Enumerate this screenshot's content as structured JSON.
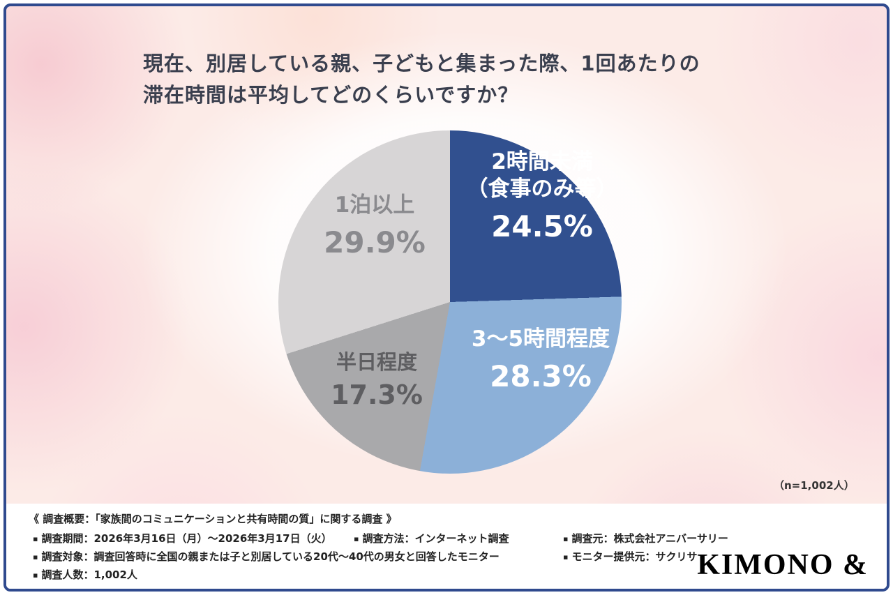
{
  "page": {
    "title_line1": "現在、別居している親、子どもと集まった際、1回あたりの",
    "title_line2": "滞在時間は平均してどのくらいですか？",
    "sample_note": "（n=1,002人）"
  },
  "chart_data": {
    "type": "pie",
    "title": "現在、別居している親、子どもと集まった際、1回あたりの滞在時間は平均してどのくらいですか？",
    "n": "1,002",
    "start_angle_deg": 0,
    "direction": "clockwise",
    "legend_position": "on-slices",
    "slices": [
      {
        "label": "2時間未満（食事のみ等）",
        "label_lines": [
          "2時間未満",
          "（食事のみ等）"
        ],
        "value": 24.5,
        "value_label": "24.5%",
        "color": "#31508f",
        "text_color": "#ffffff"
      },
      {
        "label": "3〜5時間程度",
        "label_lines": [
          "3〜5時間程度"
        ],
        "value": 28.3,
        "value_label": "28.3%",
        "color": "#8cb0d8",
        "text_color": "#ffffff"
      },
      {
        "label": "半日程度",
        "label_lines": [
          "半日程度"
        ],
        "value": 17.3,
        "value_label": "17.3%",
        "color": "#a9a9ab",
        "text_color": "#5e5e61"
      },
      {
        "label": "1泊以上",
        "label_lines": [
          "1泊以上"
        ],
        "value": 29.9,
        "value_label": "29.9%",
        "color": "#d7d5d6",
        "text_color": "#8a8a8e"
      }
    ]
  },
  "footer": {
    "bullet": "▪",
    "heading": "《 調査概要：「家族間のコミュニケーションと共有時間の質」に関する調査 》",
    "items": [
      {
        "text": "調査期間：2026年3月16日（月）〜2026年3月17日（火）"
      },
      {
        "text": "調査方法：インターネット調査"
      },
      {
        "text": "調査元：株式会社アニバーサリー"
      },
      {
        "text": "調査対象：調査回答時に全国の親または子と別居している20代〜40代の男女と回答したモニター"
      },
      {
        "text": "モニター提供元：サクリサ"
      },
      {
        "text": "調査人数：1,002人"
      }
    ]
  },
  "logo": "KIMONO &"
}
